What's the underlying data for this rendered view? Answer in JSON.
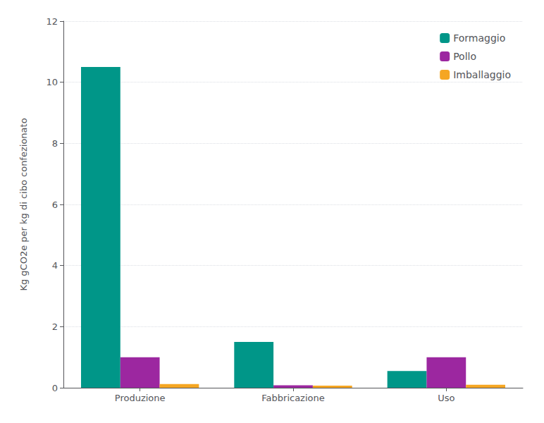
{
  "chart_data": {
    "type": "bar",
    "ylabel": "Kg gCO2e per kg di cibo confezionato",
    "categories": [
      "Produzione",
      "Fabbricazione",
      "Uso"
    ],
    "series": [
      {
        "name": "Formaggio",
        "color": "#009688",
        "values": [
          10.5,
          1.5,
          0.55
        ]
      },
      {
        "name": "Pollo",
        "color": "#9C27A0",
        "values": [
          1.0,
          0.08,
          1.0
        ]
      },
      {
        "name": "Imballaggio",
        "color": "#F5A623",
        "values": [
          0.12,
          0.07,
          0.1
        ]
      }
    ],
    "ylim": [
      0,
      12
    ],
    "yticks": [
      0,
      2,
      4,
      6,
      8,
      10,
      12
    ],
    "grid": true,
    "legend": "upper right"
  }
}
